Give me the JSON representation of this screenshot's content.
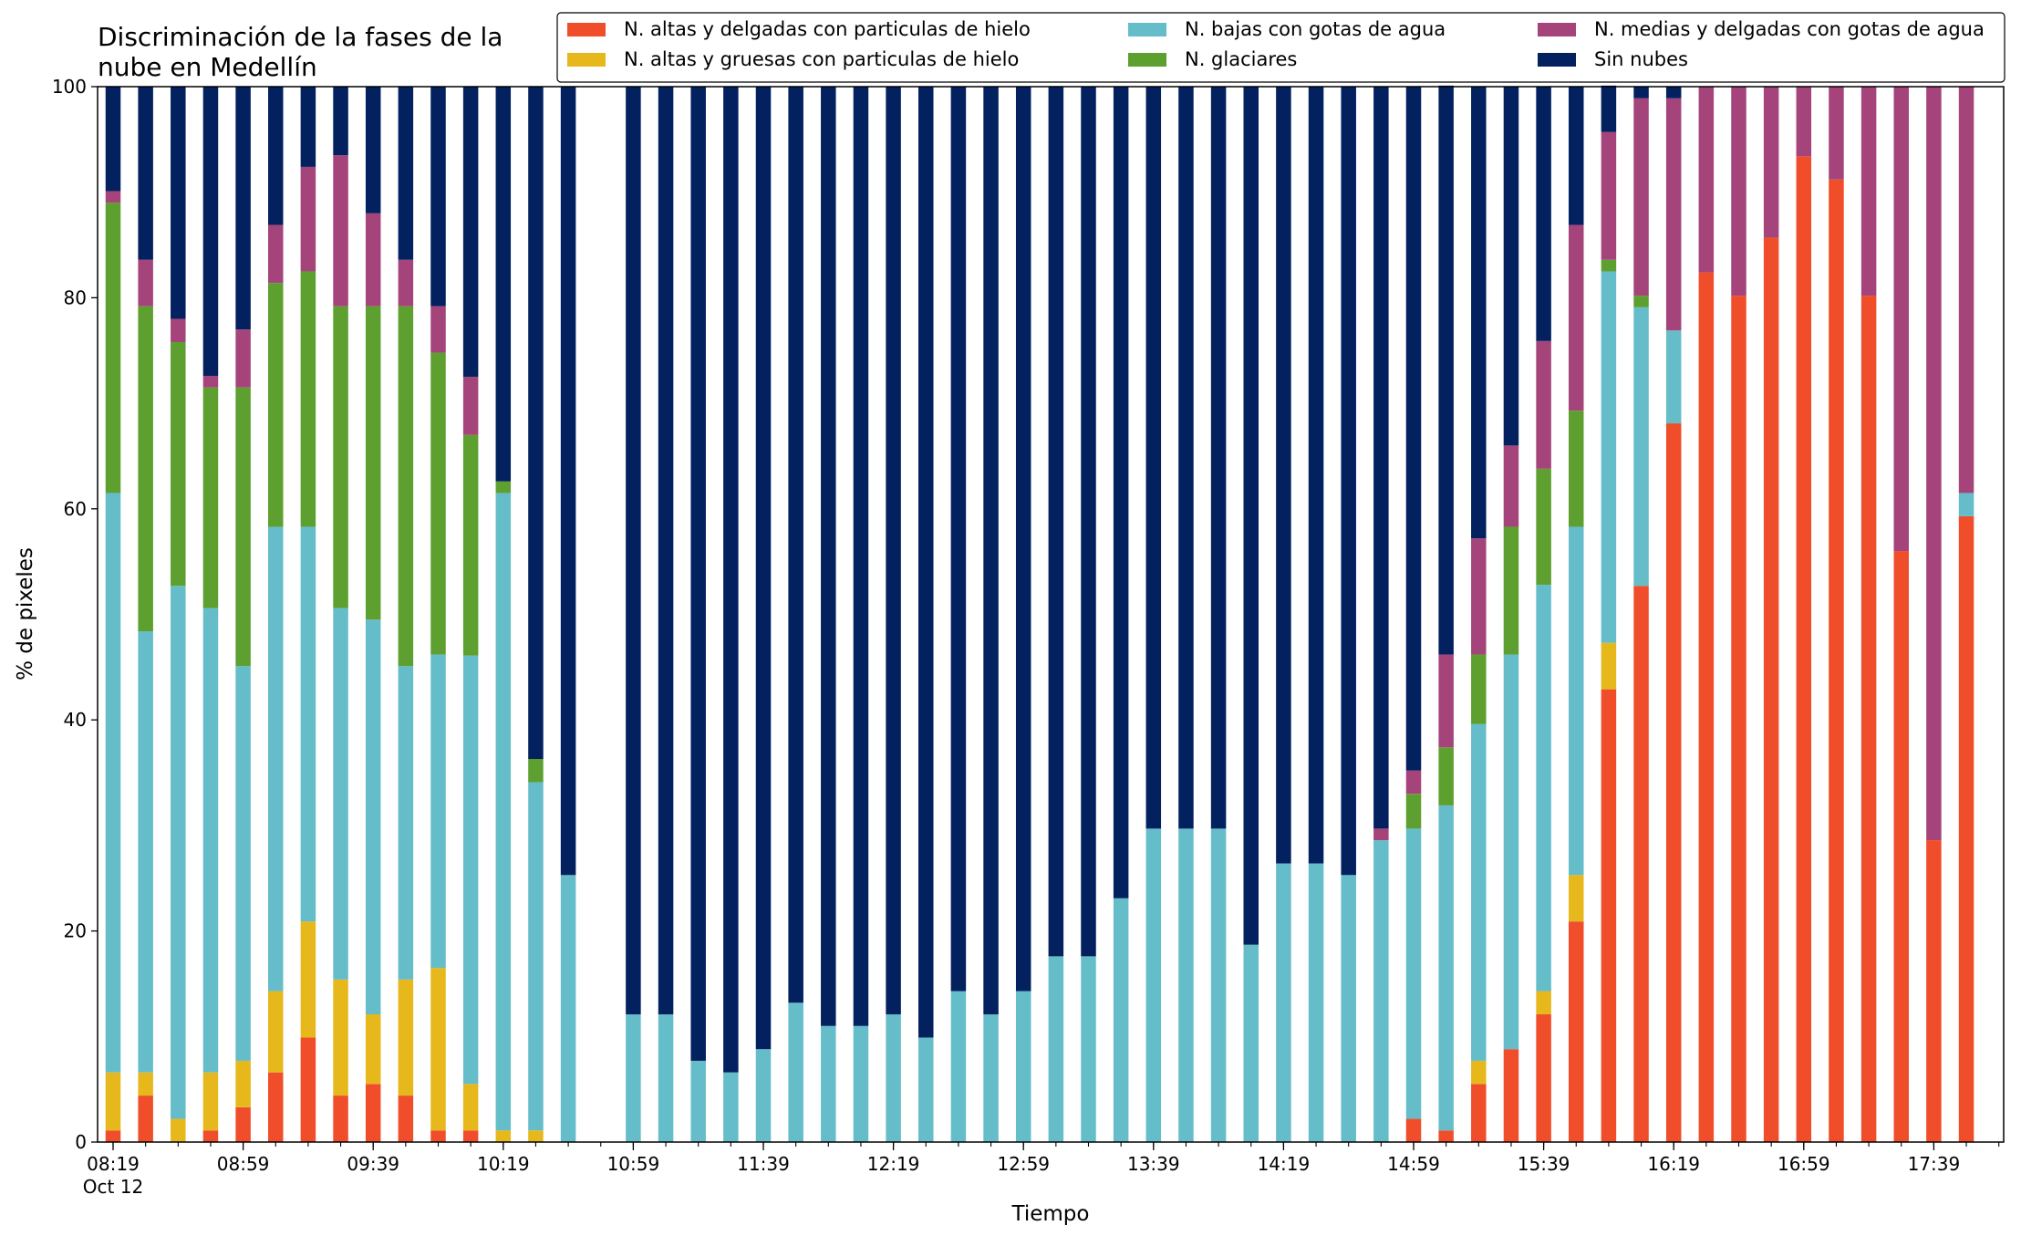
{
  "chart_data": {
    "type": "bar",
    "stacked": true,
    "title_lines": [
      "Discriminación de la fases de la",
      "nube en Medellín"
    ],
    "xlabel": "Tiempo",
    "ylabel": "% de pixeles",
    "ylim": [
      0,
      100
    ],
    "yticks": [
      "0",
      "20",
      "40",
      "60",
      "80",
      "100"
    ],
    "xticks": [
      {
        "at": "08:19",
        "label": "08:19",
        "sublabel": "Oct 12"
      },
      {
        "at": "08:59",
        "label": "08:59"
      },
      {
        "at": "09:39",
        "label": "09:39"
      },
      {
        "at": "10:19",
        "label": "10:19"
      },
      {
        "at": "10:59",
        "label": "10:59"
      },
      {
        "at": "11:39",
        "label": "11:39"
      },
      {
        "at": "12:19",
        "label": "12:19"
      },
      {
        "at": "12:59",
        "label": "12:59"
      },
      {
        "at": "13:39",
        "label": "13:39"
      },
      {
        "at": "14:19",
        "label": "14:19"
      },
      {
        "at": "14:59",
        "label": "14:59"
      },
      {
        "at": "15:39",
        "label": "15:39"
      },
      {
        "at": "16:19",
        "label": "16:19"
      },
      {
        "at": "16:59",
        "label": "16:59"
      },
      {
        "at": "17:39",
        "label": "17:39"
      }
    ],
    "grid": false,
    "legend_position": "top-right",
    "x": [
      "08:19",
      "08:29",
      "08:39",
      "08:49",
      "08:59",
      "09:09",
      "09:19",
      "09:29",
      "09:39",
      "09:49",
      "09:59",
      "10:09",
      "10:19",
      "10:29",
      "10:39",
      "10:49",
      "10:59",
      "11:09",
      "11:19",
      "11:29",
      "11:39",
      "11:49",
      "11:59",
      "12:09",
      "12:19",
      "12:29",
      "12:39",
      "12:49",
      "12:59",
      "13:09",
      "13:19",
      "13:29",
      "13:39",
      "13:49",
      "13:59",
      "14:09",
      "14:19",
      "14:29",
      "14:39",
      "14:49",
      "14:59",
      "15:09",
      "15:19",
      "15:29",
      "15:39",
      "15:49",
      "15:59",
      "16:09",
      "16:19",
      "16:29",
      "16:39",
      "16:49",
      "16:59",
      "17:09",
      "17:19",
      "17:29",
      "17:39",
      "17:49"
    ],
    "series": [
      {
        "name": "N. altas y delgadas con particulas de hielo",
        "color": "#f04e2b",
        "values": [
          1.1,
          4.4,
          0,
          1.1,
          3.3,
          6.6,
          9.9,
          4.4,
          5.5,
          4.4,
          1.1,
          1.1,
          0,
          0,
          0,
          0,
          0,
          0,
          0,
          0,
          0,
          0,
          0,
          0,
          0,
          0,
          0,
          0,
          0,
          0,
          0,
          0,
          0,
          0,
          0,
          0,
          0,
          0,
          0,
          0,
          2.2,
          1.1,
          5.5,
          8.8,
          12.1,
          20.9,
          42.9,
          52.7,
          68.1,
          82.4,
          80.2,
          85.7,
          93.4,
          91.2,
          80.2,
          56.0,
          28.6,
          59.3
        ]
      },
      {
        "name": "N. altas y gruesas con particulas de hielo",
        "color": "#e6b81c",
        "values": [
          5.5,
          2.2,
          2.2,
          5.5,
          4.4,
          7.7,
          11.0,
          11.0,
          6.6,
          11.0,
          15.4,
          4.4,
          1.1,
          1.1,
          0,
          0,
          0,
          0,
          0,
          0,
          0,
          0,
          0,
          0,
          0,
          0,
          0,
          0,
          0,
          0,
          0,
          0,
          0,
          0,
          0,
          0,
          0,
          0,
          0,
          0,
          0,
          0,
          2.2,
          0,
          2.2,
          4.4,
          4.4,
          0,
          0,
          0,
          0,
          0,
          0,
          0,
          0,
          0,
          0,
          0
        ]
      },
      {
        "name": "N. bajas con gotas de agua",
        "color": "#66bdca",
        "values": [
          54.9,
          41.8,
          50.5,
          44.0,
          37.4,
          44.0,
          37.4,
          35.2,
          37.4,
          29.7,
          29.7,
          40.6,
          60.4,
          33.0,
          25.3,
          0,
          12.1,
          12.1,
          7.7,
          6.6,
          8.8,
          13.2,
          11.0,
          11.0,
          12.1,
          9.9,
          14.3,
          12.1,
          14.3,
          17.6,
          17.6,
          23.1,
          29.7,
          29.7,
          29.7,
          18.7,
          26.4,
          26.4,
          25.3,
          28.6,
          27.5,
          30.8,
          31.9,
          37.4,
          38.5,
          33.0,
          35.2,
          26.4,
          8.8,
          0,
          0,
          0,
          0,
          0,
          0,
          0,
          0,
          2.2
        ]
      },
      {
        "name": "N. glaciares",
        "color": "#5da02f",
        "values": [
          27.5,
          30.8,
          23.1,
          20.9,
          26.4,
          23.1,
          24.2,
          28.6,
          29.7,
          34.1,
          28.6,
          20.9,
          1.1,
          2.2,
          0,
          0,
          0,
          0,
          0,
          0,
          0,
          0,
          0,
          0,
          0,
          0,
          0,
          0,
          0,
          0,
          0,
          0,
          0,
          0,
          0,
          0,
          0,
          0,
          0,
          0,
          3.3,
          5.5,
          6.6,
          12.1,
          11.0,
          11.0,
          1.1,
          1.1,
          0,
          0,
          0,
          0,
          0,
          0,
          0,
          0,
          0,
          0
        ]
      },
      {
        "name": "N. medias y delgadas con gotas de agua",
        "color": "#a5447b",
        "values": [
          1.1,
          4.4,
          2.2,
          1.1,
          5.5,
          5.5,
          9.9,
          14.3,
          8.8,
          4.4,
          4.4,
          5.5,
          0,
          0,
          0,
          0,
          0,
          0,
          0,
          0,
          0,
          0,
          0,
          0,
          0,
          0,
          0,
          0,
          0,
          0,
          0,
          0,
          0,
          0,
          0,
          0,
          0,
          0,
          0,
          1.1,
          2.2,
          8.8,
          11.0,
          7.7,
          12.1,
          17.6,
          12.1,
          18.7,
          22.0,
          17.6,
          19.8,
          14.3,
          6.6,
          8.8,
          19.8,
          44.0,
          71.4,
          38.5
        ]
      },
      {
        "name": "Sin nubes",
        "color": "#03205f",
        "values": [
          9.9,
          16.4,
          22.0,
          27.4,
          23.0,
          13.1,
          7.6,
          6.5,
          12.0,
          16.4,
          20.8,
          27.5,
          37.4,
          63.7,
          74.7,
          0,
          87.9,
          87.9,
          92.3,
          93.4,
          91.2,
          86.8,
          89.0,
          89.0,
          87.9,
          90.1,
          85.7,
          87.9,
          85.7,
          82.4,
          82.4,
          76.9,
          70.3,
          70.3,
          70.3,
          81.3,
          73.6,
          73.6,
          74.7,
          70.3,
          64.8,
          53.9,
          42.8,
          34.0,
          24.1,
          13.1,
          4.4,
          1.1,
          1.1,
          0,
          0,
          0,
          0,
          0,
          0,
          0,
          0,
          0
        ]
      }
    ]
  }
}
